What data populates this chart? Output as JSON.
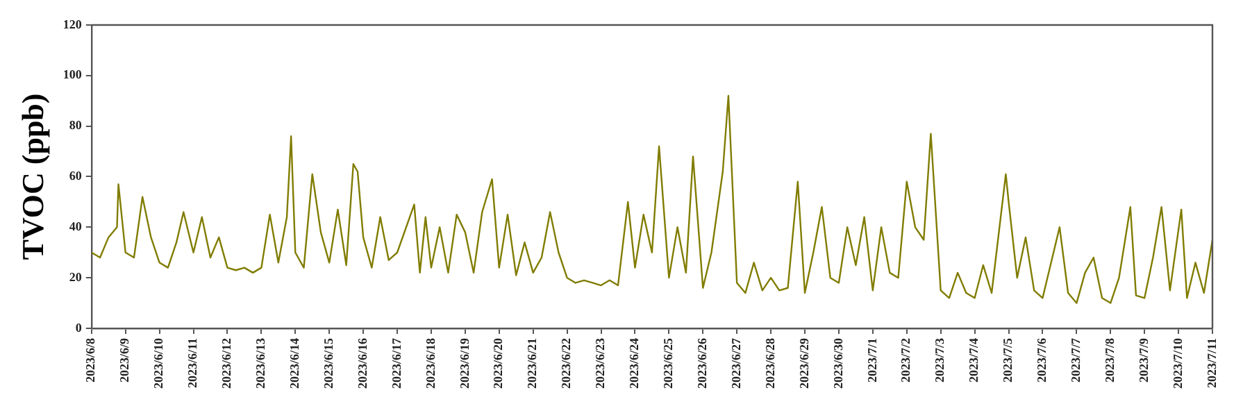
{
  "chart_data": {
    "type": "line",
    "ylabel": "TVOC (ppb)",
    "x": [
      "2023-06-08T00:00",
      "2023-06-08T06:00",
      "2023-06-08T12:00",
      "2023-06-08T18:00",
      "2023-06-08T19:00",
      "2023-06-09T00:00",
      "2023-06-09T06:00",
      "2023-06-09T12:00",
      "2023-06-09T18:00",
      "2023-06-10T00:00",
      "2023-06-10T06:00",
      "2023-06-10T12:00",
      "2023-06-10T17:00",
      "2023-06-11T00:00",
      "2023-06-11T06:00",
      "2023-06-11T12:00",
      "2023-06-11T18:00",
      "2023-06-12T00:00",
      "2023-06-12T06:00",
      "2023-06-12T12:00",
      "2023-06-12T18:00",
      "2023-06-13T00:00",
      "2023-06-13T06:00",
      "2023-06-13T12:00",
      "2023-06-13T18:00",
      "2023-06-13T21:00",
      "2023-06-14T00:00",
      "2023-06-14T06:00",
      "2023-06-14T12:00",
      "2023-06-14T18:00",
      "2023-06-15T00:00",
      "2023-06-15T06:00",
      "2023-06-15T12:00",
      "2023-06-15T17:00",
      "2023-06-15T20:00",
      "2023-06-16T00:00",
      "2023-06-16T06:00",
      "2023-06-16T12:00",
      "2023-06-16T18:00",
      "2023-06-17T00:00",
      "2023-06-17T12:00",
      "2023-06-17T16:00",
      "2023-06-17T20:00",
      "2023-06-18T00:00",
      "2023-06-18T06:00",
      "2023-06-18T12:00",
      "2023-06-18T18:00",
      "2023-06-19T00:00",
      "2023-06-19T06:00",
      "2023-06-19T12:00",
      "2023-06-19T19:00",
      "2023-06-20T00:00",
      "2023-06-20T06:00",
      "2023-06-20T12:00",
      "2023-06-20T18:00",
      "2023-06-21T00:00",
      "2023-06-21T06:00",
      "2023-06-21T12:00",
      "2023-06-21T18:00",
      "2023-06-22T00:00",
      "2023-06-22T06:00",
      "2023-06-22T12:00",
      "2023-06-22T18:00",
      "2023-06-23T00:00",
      "2023-06-23T06:00",
      "2023-06-23T12:00",
      "2023-06-23T19:00",
      "2023-06-24T00:00",
      "2023-06-24T06:00",
      "2023-06-24T12:00",
      "2023-06-24T17:00",
      "2023-06-25T00:00",
      "2023-06-25T06:00",
      "2023-06-25T12:00",
      "2023-06-25T17:00",
      "2023-06-26T00:00",
      "2023-06-26T06:00",
      "2023-06-26T14:00",
      "2023-06-26T18:00",
      "2023-06-27T00:00",
      "2023-06-27T06:00",
      "2023-06-27T12:00",
      "2023-06-27T18:00",
      "2023-06-28T00:00",
      "2023-06-28T06:00",
      "2023-06-28T12:00",
      "2023-06-28T19:00",
      "2023-06-29T00:00",
      "2023-06-29T06:00",
      "2023-06-29T12:00",
      "2023-06-29T18:00",
      "2023-06-30T00:00",
      "2023-06-30T06:00",
      "2023-06-30T12:00",
      "2023-06-30T18:00",
      "2023-07-01T00:00",
      "2023-07-01T06:00",
      "2023-07-01T12:00",
      "2023-07-01T18:00",
      "2023-07-02T00:00",
      "2023-07-02T06:00",
      "2023-07-02T12:00",
      "2023-07-02T17:00",
      "2023-07-03T00:00",
      "2023-07-03T06:00",
      "2023-07-03T12:00",
      "2023-07-03T18:00",
      "2023-07-04T00:00",
      "2023-07-04T06:00",
      "2023-07-04T12:00",
      "2023-07-04T22:00",
      "2023-07-05T00:00",
      "2023-07-05T06:00",
      "2023-07-05T12:00",
      "2023-07-05T18:00",
      "2023-07-06T00:00",
      "2023-07-06T06:00",
      "2023-07-06T12:00",
      "2023-07-06T18:00",
      "2023-07-07T00:00",
      "2023-07-07T06:00",
      "2023-07-07T12:00",
      "2023-07-07T18:00",
      "2023-07-08T00:00",
      "2023-07-08T06:00",
      "2023-07-08T14:00",
      "2023-07-08T18:00",
      "2023-07-09T00:00",
      "2023-07-09T06:00",
      "2023-07-09T12:00",
      "2023-07-09T18:00",
      "2023-07-10T02:00",
      "2023-07-10T06:00",
      "2023-07-10T12:00",
      "2023-07-10T18:00",
      "2023-07-11T00:00"
    ],
    "series": [
      {
        "color": "#807c00",
        "values": [
          30,
          28,
          36,
          40,
          57,
          30,
          28,
          52,
          36,
          26,
          24,
          34,
          46,
          30,
          44,
          28,
          36,
          24,
          23,
          24,
          22,
          24,
          45,
          26,
          44,
          76,
          30,
          24,
          61,
          38,
          26,
          47,
          25,
          65,
          62,
          36,
          24,
          44,
          27,
          30,
          49,
          22,
          44,
          24,
          40,
          22,
          45,
          38,
          22,
          46,
          59,
          24,
          45,
          21,
          34,
          22,
          28,
          46,
          30,
          20,
          18,
          19,
          18,
          17,
          19,
          17,
          50,
          24,
          45,
          30,
          72,
          20,
          40,
          22,
          68,
          16,
          30,
          62,
          92,
          18,
          14,
          26,
          15,
          20,
          15,
          16,
          58,
          14,
          30,
          48,
          20,
          18,
          40,
          25,
          44,
          15,
          40,
          22,
          20,
          58,
          40,
          35,
          77,
          15,
          12,
          22,
          14,
          12,
          25,
          14,
          61,
          50,
          20,
          36,
          15,
          12,
          26,
          40,
          14,
          10,
          22,
          28,
          12,
          10,
          20,
          48,
          13,
          12,
          28,
          48,
          15,
          47,
          12,
          26,
          14,
          35
        ]
      }
    ],
    "xlim": [
      "2023-06-08",
      "2023-07-11"
    ],
    "xticks": [
      {
        "value": "2023-06-08",
        "label": "2023/6/8"
      },
      {
        "value": "2023-06-09",
        "label": "2023/6/9"
      },
      {
        "value": "2023-06-10",
        "label": "2023/6/10"
      },
      {
        "value": "2023-06-11",
        "label": "2023/6/11"
      },
      {
        "value": "2023-06-12",
        "label": "2023/6/12"
      },
      {
        "value": "2023-06-13",
        "label": "2023/6/13"
      },
      {
        "value": "2023-06-14",
        "label": "2023/6/14"
      },
      {
        "value": "2023-06-15",
        "label": "2023/6/15"
      },
      {
        "value": "2023-06-16",
        "label": "2023/6/16"
      },
      {
        "value": "2023-06-17",
        "label": "2023/6/17"
      },
      {
        "value": "2023-06-18",
        "label": "2023/6/18"
      },
      {
        "value": "2023-06-19",
        "label": "2023/6/19"
      },
      {
        "value": "2023-06-20",
        "label": "2023/6/20"
      },
      {
        "value": "2023-06-21",
        "label": "2023/6/21"
      },
      {
        "value": "2023-06-22",
        "label": "2023/6/22"
      },
      {
        "value": "2023-06-23",
        "label": "2023/6/23"
      },
      {
        "value": "2023-06-24",
        "label": "2023/6/24"
      },
      {
        "value": "2023-06-25",
        "label": "2023/6/25"
      },
      {
        "value": "2023-06-26",
        "label": "2023/6/26"
      },
      {
        "value": "2023-06-27",
        "label": "2023/6/27"
      },
      {
        "value": "2023-06-28",
        "label": "2023/6/28"
      },
      {
        "value": "2023-06-29",
        "label": "2023/6/29"
      },
      {
        "value": "2023-06-30",
        "label": "2023/6/30"
      },
      {
        "value": "2023-07-01",
        "label": "2023/7/1"
      },
      {
        "value": "2023-07-02",
        "label": "2023/7/2"
      },
      {
        "value": "2023-07-03",
        "label": "2023/7/3"
      },
      {
        "value": "2023-07-04",
        "label": "2023/7/4"
      },
      {
        "value": "2023-07-05",
        "label": "2023/7/5"
      },
      {
        "value": "2023-07-06",
        "label": "2023/7/6"
      },
      {
        "value": "2023-07-07",
        "label": "2023/7/7"
      },
      {
        "value": "2023-07-08",
        "label": "2023/7/8"
      },
      {
        "value": "2023-07-09",
        "label": "2023/7/9"
      },
      {
        "value": "2023-07-10",
        "label": "2023/7/10"
      },
      {
        "value": "2023-07-11",
        "label": "2023/7/11"
      }
    ],
    "ylim": [
      0,
      120
    ],
    "yticks": [
      0,
      20,
      40,
      60,
      80,
      100,
      120
    ],
    "grid": false,
    "legend": false,
    "marker": "none",
    "line_style": "solid"
  }
}
